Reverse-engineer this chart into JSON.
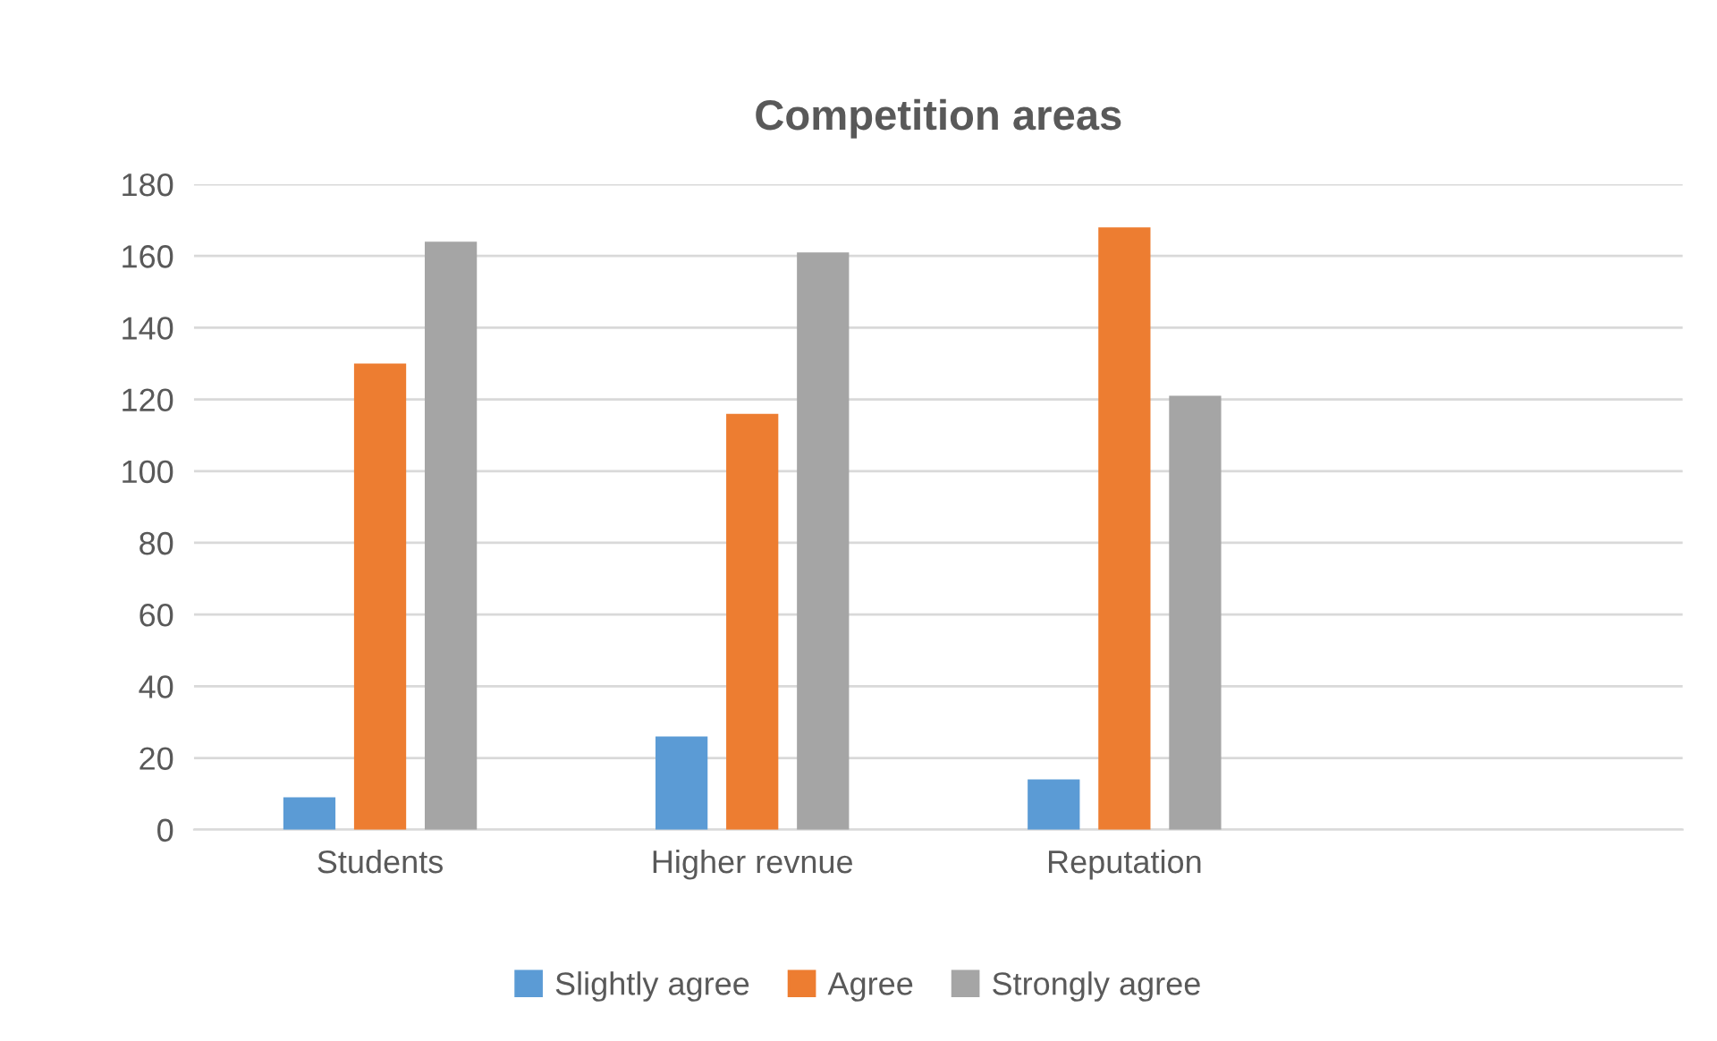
{
  "chart_data": {
    "type": "bar",
    "title": "Competition areas",
    "categories": [
      "Students",
      "Higher revnue",
      "Reputation",
      null
    ],
    "series": [
      {
        "name": "Slightly agree",
        "color": "#5b9bd5",
        "values": [
          9,
          26,
          14,
          null
        ]
      },
      {
        "name": "Agree",
        "color": "#ed7d31",
        "values": [
          130,
          116,
          168,
          null
        ]
      },
      {
        "name": "Strongly agree",
        "color": "#a5a5a5",
        "values": [
          164,
          161,
          121,
          null
        ]
      }
    ],
    "ylim": [
      0,
      180
    ],
    "yticks": [
      0,
      20,
      40,
      60,
      80,
      100,
      120,
      140,
      160,
      180
    ],
    "grid": "y",
    "legend": "bottom"
  }
}
